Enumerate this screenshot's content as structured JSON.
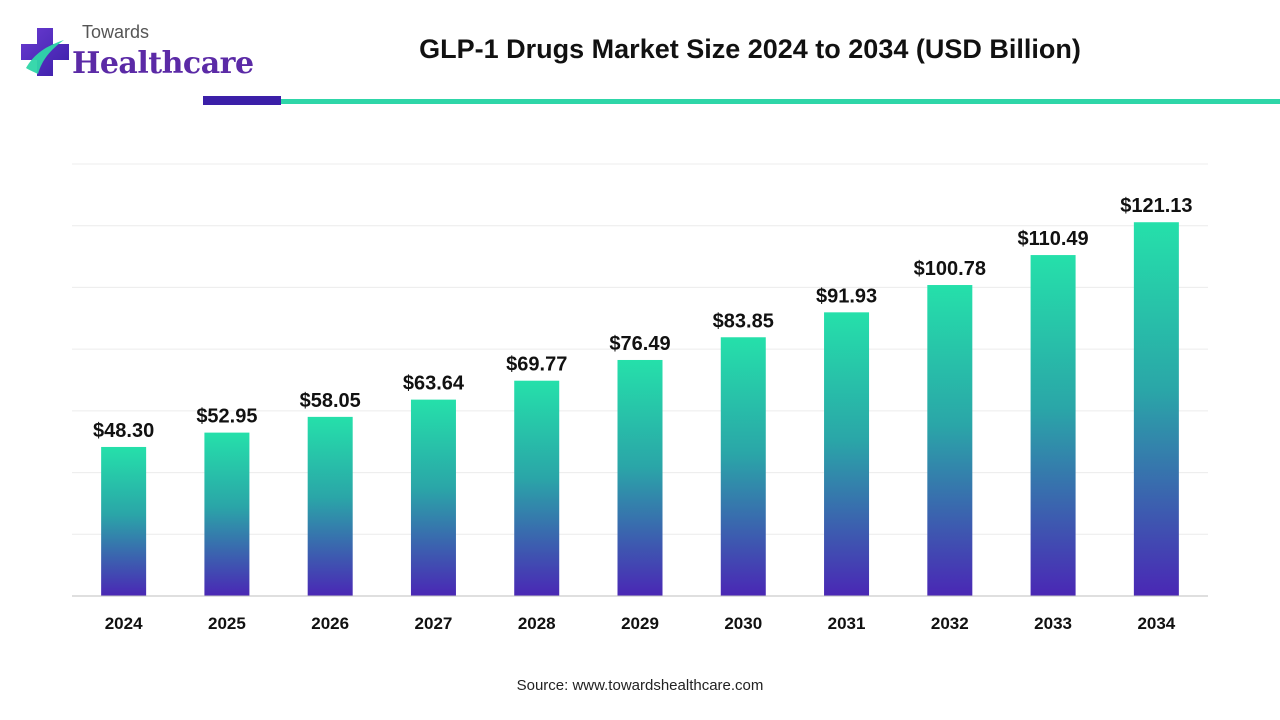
{
  "brand": {
    "logo_top": "Towards",
    "logo_bottom": "Healthcare",
    "colors": {
      "purple": "#5b2aa6",
      "teal": "#2ed6a8",
      "dark_rule": "#3b1fa8"
    }
  },
  "source": "Source: www.towardshealthcare.com",
  "chart_data": {
    "type": "bar",
    "title": "GLP-1 Drugs Market Size 2024 to 2034 (USD Billion)",
    "xlabel": "",
    "ylabel": "",
    "categories": [
      "2024",
      "2025",
      "2026",
      "2027",
      "2028",
      "2029",
      "2030",
      "2031",
      "2032",
      "2033",
      "2034"
    ],
    "values": [
      48.3,
      52.95,
      58.05,
      63.64,
      69.77,
      76.49,
      83.85,
      91.93,
      100.78,
      110.49,
      121.13
    ],
    "value_labels": [
      "$48.30",
      "$52.95",
      "$58.05",
      "$63.64",
      "$69.77",
      "$76.49",
      "$83.85",
      "$91.93",
      "$100.78",
      "$110.49",
      "$121.13"
    ],
    "ylim": [
      0,
      140
    ],
    "grid": true,
    "bar_gradient": {
      "top": "#25e0aa",
      "bottom": "#4a27b5"
    }
  }
}
